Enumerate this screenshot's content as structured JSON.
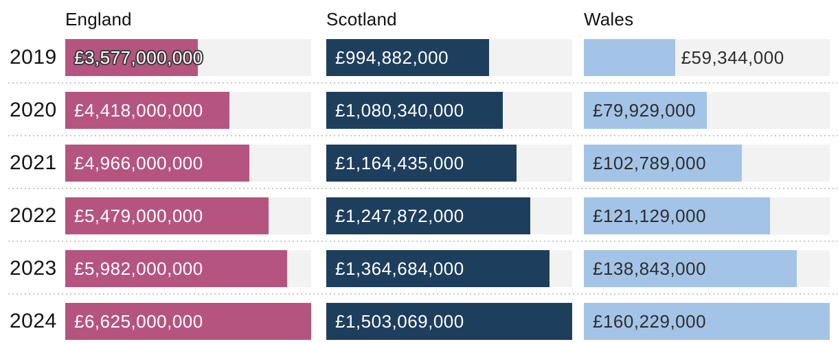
{
  "chart_data": {
    "type": "bar",
    "orientation": "horizontal",
    "currency": "GBP",
    "categories": [
      "2019",
      "2020",
      "2021",
      "2022",
      "2023",
      "2024"
    ],
    "series": [
      {
        "name": "England",
        "color": "#b5547e",
        "label_color": "#ffffff",
        "values": [
          3577000000,
          4418000000,
          4966000000,
          5479000000,
          5982000000,
          6625000000
        ],
        "labels": [
          "£3,577,000,000",
          "£4,418,000,000",
          "£4,966,000,000",
          "£5,479,000,000",
          "£5,982,000,000",
          "£6,625,000,000"
        ]
      },
      {
        "name": "Scotland",
        "color": "#1e3e5d",
        "label_color": "#ffffff",
        "values": [
          994882000,
          1080340000,
          1164435000,
          1247872000,
          1364684000,
          1503069000
        ],
        "labels": [
          "£994,882,000",
          "£1,080,340,000",
          "£1,164,435,000",
          "£1,247,872,000",
          "£1,364,684,000",
          "£1,503,069,000"
        ]
      },
      {
        "name": "Wales",
        "color": "#a3c4e6",
        "label_color": "#2e2e2e",
        "values": [
          59344000,
          79929000,
          102789000,
          121129000,
          138843000,
          160229000
        ],
        "labels": [
          "£59,344,000",
          "£79,929,000",
          "£102,789,000",
          "£121,129,000",
          "£138,843,000",
          "£160,229,000"
        ]
      }
    ],
    "layout": {
      "track_color": "#f2f2f2",
      "separator_color": "#c8c8c8",
      "scaling": "each column scaled to its own 2024 maximum filling the full track",
      "value_label_position": "inside-left; outlined or moved outside when bar too short",
      "grid": "off",
      "legend": "column headers above each bar group"
    }
  }
}
